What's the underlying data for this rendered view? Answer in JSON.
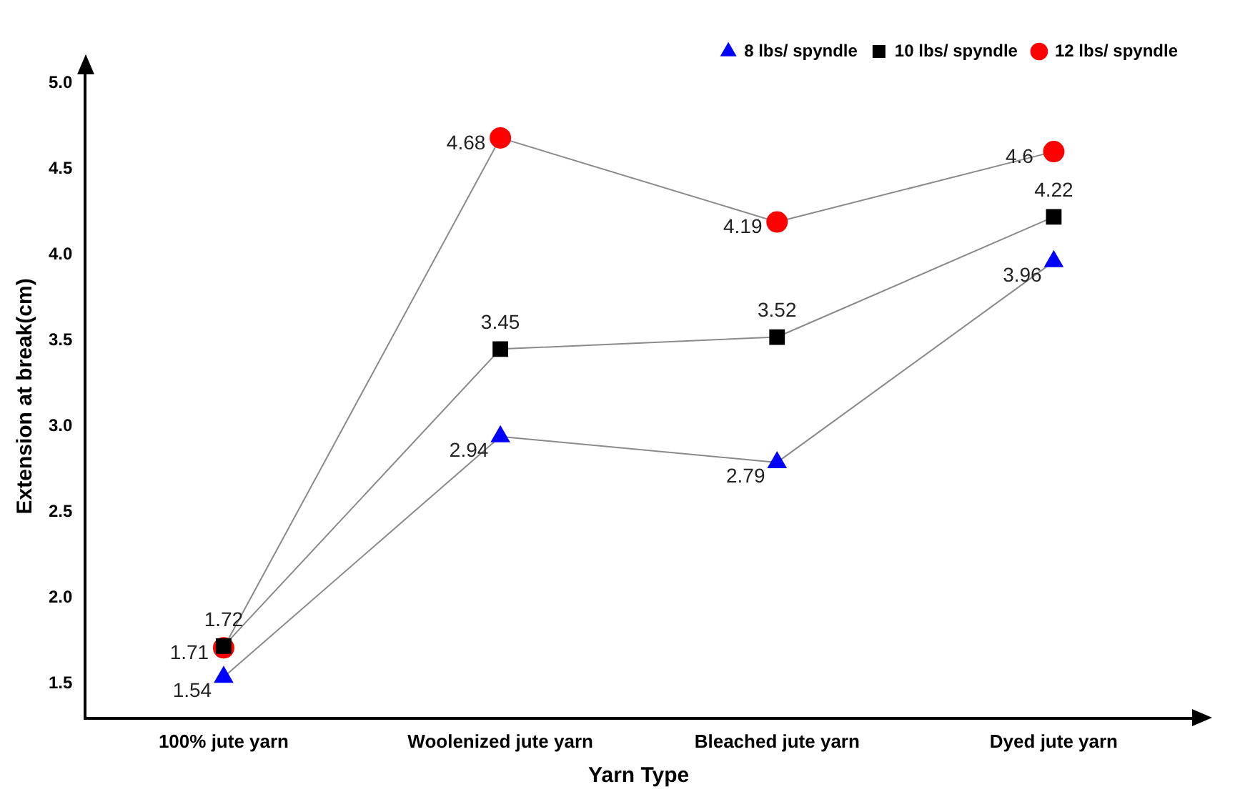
{
  "chart_data": {
    "type": "line",
    "xlabel": "Yarn Type",
    "ylabel": "Extension at break(cm)",
    "categories": [
      "100% jute yarn",
      "Woolenized jute yarn",
      "Bleached jute yarn",
      "Dyed jute yarn"
    ],
    "series": [
      {
        "name": "8 lbs/ spyndle",
        "color": "#0000ff",
        "marker": "triangle",
        "values": [
          1.54,
          2.94,
          2.79,
          3.96
        ]
      },
      {
        "name": "10 lbs/ spyndle",
        "color": "#000000",
        "marker": "square",
        "values": [
          1.72,
          3.45,
          3.52,
          4.22
        ]
      },
      {
        "name": "12 lbs/ spyndle",
        "color": "#ff0000",
        "marker": "circle",
        "values": [
          1.71,
          4.68,
          4.19,
          4.6
        ]
      }
    ],
    "ylim": [
      1.3,
      5.05
    ],
    "yticks": [
      1.5,
      {
        "value": 2,
        "label": "2.0"
      },
      2.5,
      {
        "value": 3,
        "label": "3.0"
      },
      3.5,
      {
        "value": 4,
        "label": "4.0"
      },
      4.5,
      {
        "value": 5,
        "label": "5.0"
      }
    ],
    "grid": false,
    "legend": "top right",
    "data_labels": true
  }
}
